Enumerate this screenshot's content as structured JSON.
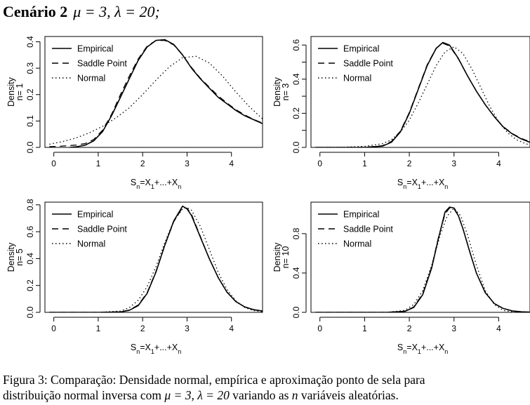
{
  "header": {
    "title_bold": "Cenário 2",
    "title_math": "μ = 3, λ = 20;"
  },
  "caption": {
    "lead": "Figura 3: Comparação: Densidade normal, empírica e aproximação ponto de sela para",
    "line2_a": "distribuição normal inversa com ",
    "line2_math": "μ = 3, λ = 20",
    "line2_b": " variando as ",
    "line2_n": "n",
    "line2_c": " variáveis aleatórias."
  },
  "colors": {
    "line": "#000000",
    "background": "#ffffff"
  },
  "chart_data": [
    {
      "type": "line",
      "panel": "top-left",
      "ylabel": "Density",
      "ylabel2": "n= 1",
      "xlabel": "Sn=X1+...+Xn",
      "xlim": [
        -0.2,
        4.7
      ],
      "ylim": [
        0,
        0.42
      ],
      "xticks": [
        0,
        1,
        2,
        3,
        4
      ],
      "yticks": [
        0.0,
        0.1,
        0.2,
        0.3,
        0.4
      ],
      "ytick_labels": [
        "0.0",
        "0.1",
        "0.2",
        "0.3",
        "0.4"
      ],
      "legend": [
        "Empirical",
        "Saddle Point",
        "Normal"
      ],
      "legend_position": "top-left",
      "series": [
        {
          "name": "Empirical",
          "style": "solid",
          "x": [
            0.35,
            0.5,
            0.7,
            0.9,
            1.1,
            1.3,
            1.5,
            1.7,
            1.9,
            2.1,
            2.3,
            2.5,
            2.7,
            2.9,
            3.1,
            3.3,
            3.5,
            3.7,
            3.9,
            4.1,
            4.3,
            4.5,
            4.7
          ],
          "y": [
            0.0,
            0.002,
            0.008,
            0.025,
            0.06,
            0.12,
            0.19,
            0.26,
            0.33,
            0.38,
            0.405,
            0.408,
            0.39,
            0.35,
            0.3,
            0.26,
            0.225,
            0.19,
            0.165,
            0.14,
            0.12,
            0.105,
            0.09
          ]
        },
        {
          "name": "Saddle Point",
          "style": "dashed",
          "x": [
            -0.1,
            0.1,
            0.3,
            0.5,
            0.7,
            0.9,
            1.1,
            1.3,
            1.5,
            1.7,
            1.9,
            2.1,
            2.3,
            2.5,
            2.7,
            2.9,
            3.1,
            3.3,
            3.5,
            3.7,
            3.9,
            4.1,
            4.3,
            4.5,
            4.7
          ],
          "y": [
            0.003,
            0.004,
            0.006,
            0.009,
            0.014,
            0.03,
            0.065,
            0.125,
            0.2,
            0.27,
            0.335,
            0.383,
            0.405,
            0.405,
            0.388,
            0.35,
            0.303,
            0.262,
            0.228,
            0.195,
            0.168,
            0.143,
            0.123,
            0.106,
            0.092
          ]
        },
        {
          "name": "Normal",
          "style": "dotted",
          "x": [
            -0.1,
            0.2,
            0.5,
            0.8,
            1.1,
            1.4,
            1.7,
            2.0,
            2.3,
            2.6,
            2.9,
            3.2,
            3.5,
            3.8,
            4.1,
            4.4,
            4.7
          ],
          "y": [
            0.012,
            0.022,
            0.036,
            0.055,
            0.08,
            0.112,
            0.15,
            0.2,
            0.255,
            0.305,
            0.34,
            0.345,
            0.32,
            0.27,
            0.21,
            0.155,
            0.108
          ]
        }
      ]
    },
    {
      "type": "line",
      "panel": "top-right",
      "ylabel": "Density",
      "ylabel2": "n= 3",
      "xlabel": "Sn=X1+...+Xn",
      "xlim": [
        -0.2,
        4.7
      ],
      "ylim": [
        0,
        0.65
      ],
      "xticks": [
        0,
        1,
        2,
        3,
        4
      ],
      "yticks": [
        0.0,
        0.1,
        0.2,
        0.3,
        0.4,
        0.5,
        0.6
      ],
      "ytick_labels": [
        "0.0",
        "",
        "0.2",
        "",
        "0.4",
        "",
        "0.6"
      ],
      "legend": [
        "Empirical",
        "Saddle Point",
        "Normal"
      ],
      "legend_position": "top-left",
      "series": [
        {
          "name": "Empirical",
          "style": "solid",
          "x": [
            -0.1,
            0.5,
            1.0,
            1.4,
            1.6,
            1.8,
            2.0,
            2.2,
            2.4,
            2.6,
            2.75,
            2.9,
            3.1,
            3.3,
            3.5,
            3.7,
            3.9,
            4.1,
            4.3,
            4.5,
            4.7
          ],
          "y": [
            0.0,
            0.0,
            0.0,
            0.008,
            0.03,
            0.09,
            0.2,
            0.34,
            0.48,
            0.58,
            0.615,
            0.6,
            0.52,
            0.42,
            0.33,
            0.25,
            0.18,
            0.12,
            0.08,
            0.05,
            0.03
          ]
        },
        {
          "name": "Saddle Point",
          "style": "dashed",
          "x": [
            -0.1,
            0.5,
            1.0,
            1.4,
            1.6,
            1.8,
            2.0,
            2.2,
            2.4,
            2.6,
            2.75,
            2.9,
            3.1,
            3.3,
            3.5,
            3.7,
            3.9,
            4.1,
            4.3,
            4.5,
            4.7
          ],
          "y": [
            0.0,
            0.0,
            0.001,
            0.01,
            0.035,
            0.095,
            0.205,
            0.345,
            0.485,
            0.582,
            0.61,
            0.595,
            0.518,
            0.42,
            0.33,
            0.25,
            0.18,
            0.122,
            0.082,
            0.053,
            0.033
          ]
        },
        {
          "name": "Normal",
          "style": "dotted",
          "x": [
            -0.1,
            0.5,
            1.0,
            1.4,
            1.6,
            1.8,
            2.0,
            2.2,
            2.4,
            2.6,
            2.8,
            3.0,
            3.2,
            3.4,
            3.6,
            3.8,
            4.0,
            4.2,
            4.4,
            4.6,
            4.7
          ],
          "y": [
            0.0,
            0.001,
            0.006,
            0.022,
            0.045,
            0.09,
            0.16,
            0.26,
            0.37,
            0.48,
            0.56,
            0.59,
            0.55,
            0.46,
            0.35,
            0.24,
            0.15,
            0.085,
            0.045,
            0.022,
            0.015
          ]
        }
      ]
    },
    {
      "type": "line",
      "panel": "bottom-left",
      "ylabel": "Density",
      "ylabel2": "n= 5",
      "xlabel": "Sn=X1+...+Xn",
      "xlim": [
        -0.2,
        4.7
      ],
      "ylim": [
        0,
        0.82
      ],
      "xticks": [
        0,
        1,
        2,
        3,
        4
      ],
      "yticks": [
        0.0,
        0.2,
        0.4,
        0.6,
        0.8
      ],
      "ytick_labels": [
        "0.0",
        "0.2",
        "0.4",
        "0.6",
        "0.8"
      ],
      "legend": [
        "Empirical",
        "Saddle Point",
        "Normal"
      ],
      "legend_position": "top-left",
      "series": [
        {
          "name": "Empirical",
          "style": "solid",
          "x": [
            -0.1,
            1.0,
            1.5,
            1.7,
            1.9,
            2.1,
            2.3,
            2.5,
            2.7,
            2.9,
            3.0,
            3.1,
            3.3,
            3.5,
            3.7,
            3.9,
            4.1,
            4.3,
            4.5,
            4.7
          ],
          "y": [
            0.0,
            0.0,
            0.003,
            0.015,
            0.05,
            0.14,
            0.3,
            0.5,
            0.68,
            0.79,
            0.77,
            0.72,
            0.56,
            0.4,
            0.26,
            0.15,
            0.08,
            0.04,
            0.02,
            0.01
          ]
        },
        {
          "name": "Saddle Point",
          "style": "dashed",
          "x": [
            -0.1,
            1.0,
            1.5,
            1.7,
            1.9,
            2.1,
            2.3,
            2.5,
            2.7,
            2.9,
            3.0,
            3.1,
            3.3,
            3.5,
            3.7,
            3.9,
            4.1,
            4.3,
            4.5,
            4.7
          ],
          "y": [
            0.0,
            0.0,
            0.004,
            0.017,
            0.055,
            0.145,
            0.305,
            0.5,
            0.675,
            0.78,
            0.775,
            0.73,
            0.565,
            0.4,
            0.26,
            0.15,
            0.08,
            0.04,
            0.019,
            0.009
          ]
        },
        {
          "name": "Normal",
          "style": "dotted",
          "x": [
            -0.1,
            1.0,
            1.5,
            1.7,
            1.9,
            2.1,
            2.3,
            2.5,
            2.7,
            2.9,
            3.0,
            3.1,
            3.3,
            3.5,
            3.7,
            3.9,
            4.1,
            4.3,
            4.5,
            4.7
          ],
          "y": [
            0.0,
            0.0,
            0.01,
            0.035,
            0.09,
            0.19,
            0.34,
            0.52,
            0.68,
            0.77,
            0.78,
            0.76,
            0.64,
            0.47,
            0.3,
            0.17,
            0.085,
            0.036,
            0.013,
            0.004
          ]
        }
      ]
    },
    {
      "type": "line",
      "panel": "bottom-right",
      "ylabel": "Density",
      "ylabel2": "n= 10",
      "xlabel": "Sn=X1+...+Xn",
      "xlim": [
        -0.2,
        4.7
      ],
      "ylim": [
        0,
        1.12
      ],
      "xticks": [
        0,
        1,
        2,
        3,
        4
      ],
      "yticks": [
        0.0,
        0.4,
        0.8
      ],
      "ytick_labels": [
        "0.0",
        "0.4",
        "0.8"
      ],
      "legend": [
        "Empirical",
        "Saddle Point",
        "Normal"
      ],
      "legend_position": "top-left",
      "series": [
        {
          "name": "Empirical",
          "style": "solid",
          "x": [
            -0.1,
            1.5,
            1.9,
            2.1,
            2.3,
            2.5,
            2.65,
            2.8,
            2.9,
            3.0,
            3.1,
            3.2,
            3.35,
            3.5,
            3.7,
            3.9,
            4.1,
            4.3,
            4.5,
            4.7
          ],
          "y": [
            0.0,
            0.0,
            0.01,
            0.05,
            0.18,
            0.45,
            0.75,
            1.02,
            1.07,
            1.06,
            0.98,
            0.85,
            0.62,
            0.4,
            0.2,
            0.09,
            0.04,
            0.015,
            0.006,
            0.002
          ]
        },
        {
          "name": "Saddle Point",
          "style": "dashed",
          "x": [
            -0.1,
            1.5,
            1.9,
            2.1,
            2.3,
            2.5,
            2.65,
            2.8,
            2.9,
            3.0,
            3.1,
            3.2,
            3.35,
            3.5,
            3.7,
            3.9,
            4.1,
            4.3,
            4.5,
            4.7
          ],
          "y": [
            0.0,
            0.0,
            0.012,
            0.055,
            0.19,
            0.46,
            0.76,
            1.0,
            1.06,
            1.05,
            0.98,
            0.85,
            0.62,
            0.4,
            0.2,
            0.09,
            0.04,
            0.015,
            0.006,
            0.002
          ]
        },
        {
          "name": "Normal",
          "style": "dotted",
          "x": [
            -0.1,
            1.5,
            1.9,
            2.1,
            2.3,
            2.5,
            2.7,
            2.85,
            3.0,
            3.15,
            3.3,
            3.5,
            3.7,
            3.9,
            4.1,
            4.3,
            4.5,
            4.7
          ],
          "y": [
            0.0,
            0.001,
            0.02,
            0.08,
            0.22,
            0.48,
            0.8,
            0.98,
            1.06,
            0.98,
            0.79,
            0.48,
            0.22,
            0.08,
            0.02,
            0.004,
            0.001,
            0.0
          ]
        }
      ]
    }
  ]
}
